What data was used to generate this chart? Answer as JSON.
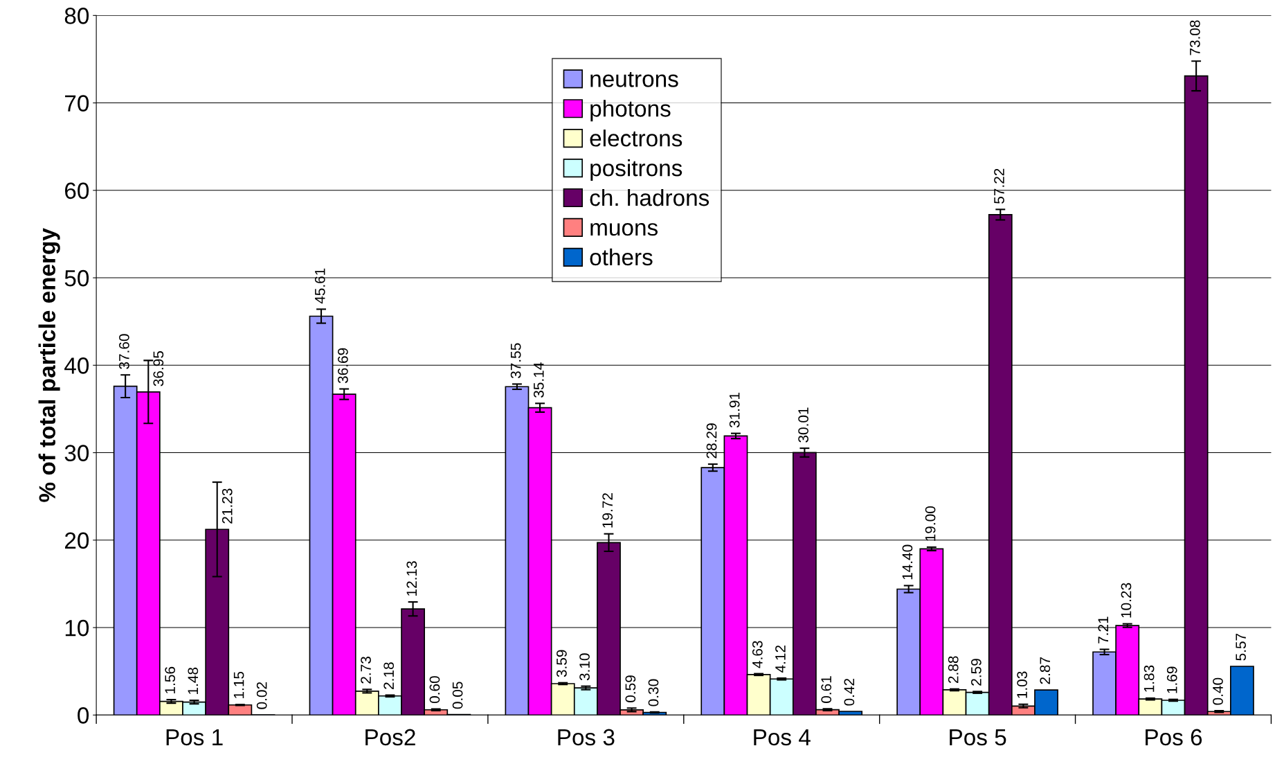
{
  "chart_data": {
    "type": "bar",
    "ylabel": "% of total particle energy",
    "categories": [
      "Pos 1",
      "Pos2",
      "Pos 3",
      "Pos 4",
      "Pos 5",
      "Pos 6"
    ],
    "series": [
      {
        "name": "neutrons",
        "color": "#9999ff",
        "values": [
          37.6,
          45.61,
          37.55,
          28.29,
          14.4,
          7.21
        ],
        "errors": [
          1.3,
          0.8,
          0.3,
          0.4,
          0.4,
          0.3
        ],
        "value_labels": [
          "37.60",
          "45.61",
          "37.55",
          "28.29",
          "14.40",
          "7.21"
        ]
      },
      {
        "name": "photons",
        "color": "#ff00ff",
        "values": [
          36.95,
          36.69,
          35.14,
          31.91,
          19.0,
          10.23
        ],
        "errors": [
          3.6,
          0.6,
          0.5,
          0.3,
          0.2,
          0.2
        ],
        "value_labels": [
          "36.95",
          "36.69",
          "35.14",
          "31.91",
          "19.00",
          "10.23"
        ]
      },
      {
        "name": "electrons",
        "color": "#ffffcc",
        "values": [
          1.56,
          2.73,
          3.59,
          4.63,
          2.88,
          1.83
        ],
        "errors": [
          0.2,
          0.2,
          0.1,
          0.1,
          0.1,
          0.1
        ],
        "value_labels": [
          "1.56",
          "2.73",
          "3.59",
          "4.63",
          "2.88",
          "1.83"
        ]
      },
      {
        "name": "positrons",
        "color": "#ccffff",
        "values": [
          1.48,
          2.18,
          3.1,
          4.12,
          2.59,
          1.69
        ],
        "errors": [
          0.2,
          0.1,
          0.2,
          0.1,
          0.1,
          0.1
        ],
        "value_labels": [
          "1.48",
          "2.18",
          "3.10",
          "4.12",
          "2.59",
          "1.69"
        ]
      },
      {
        "name": "ch. hadrons",
        "color": "#660066",
        "values": [
          21.23,
          12.13,
          19.72,
          30.01,
          57.22,
          73.08
        ],
        "errors": [
          5.4,
          0.8,
          1.0,
          0.5,
          0.6,
          1.7
        ],
        "value_labels": [
          "21.23",
          "12.13",
          "19.72",
          "30.01",
          "57.22",
          "73.08"
        ]
      },
      {
        "name": "muons",
        "color": "#ff8080",
        "values": [
          1.15,
          0.6,
          0.59,
          0.61,
          1.03,
          0.4
        ],
        "errors": [
          0.05,
          0.1,
          0.2,
          0.1,
          0.2,
          0.1
        ],
        "value_labels": [
          "1.15",
          "0.60",
          "0.59",
          "0.61",
          "1.03",
          "0.40"
        ]
      },
      {
        "name": "others",
        "color": "#0066cc",
        "values": [
          0.02,
          0.05,
          0.3,
          0.42,
          2.87,
          5.57
        ],
        "errors": [
          null,
          null,
          0.05,
          null,
          null,
          null
        ],
        "value_labels": [
          "0.02",
          "0.05",
          "0.30",
          "0.42",
          "2.87",
          "5.57"
        ]
      }
    ],
    "ylim": [
      0,
      80
    ],
    "yticks": [
      0,
      10,
      20,
      30,
      40,
      50,
      60,
      70,
      80
    ],
    "grid": "y",
    "legend": "top"
  }
}
